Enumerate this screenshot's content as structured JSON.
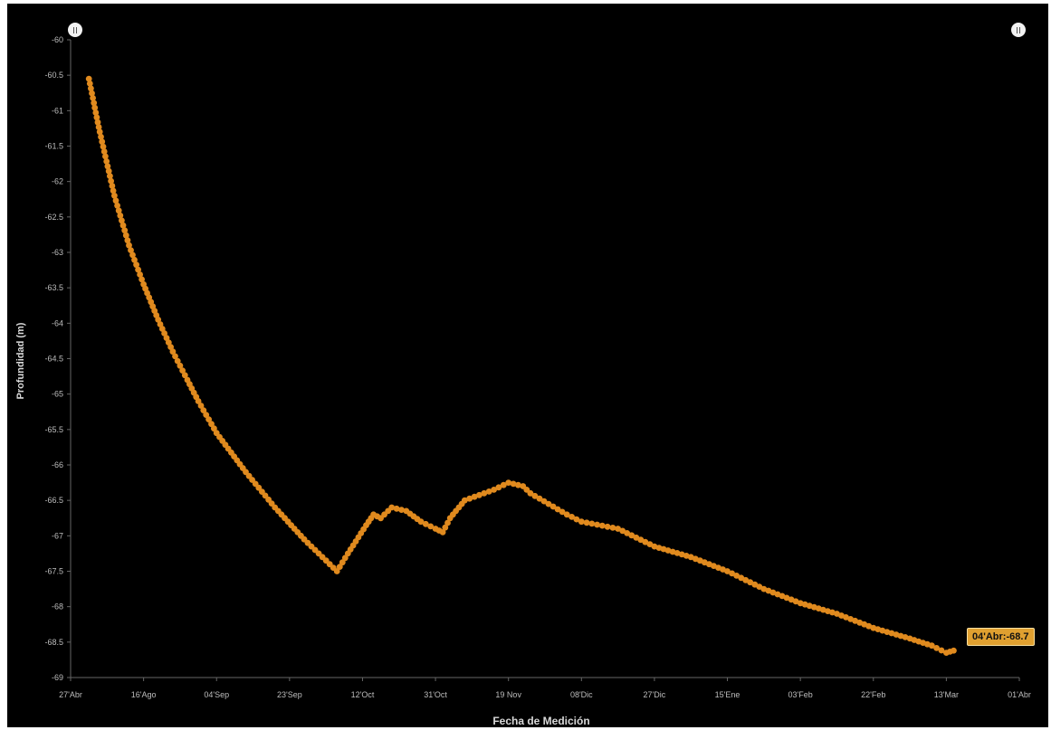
{
  "chart_data": {
    "type": "scatter",
    "xlabel": "Fecha de Medición",
    "ylabel": "Profundidad (m)",
    "ylim": [
      -69,
      -60
    ],
    "yticks": [
      "-60",
      "-60.5",
      "-61",
      "-61.5",
      "-62",
      "-62.5",
      "-63",
      "-63.5",
      "-64",
      "-64.5",
      "-65",
      "-65.5",
      "-66",
      "-66.5",
      "-67",
      "-67.5",
      "-68",
      "-68.5",
      "-69"
    ],
    "xticks": [
      "27'Abr",
      "16'Ago",
      "04'Sep",
      "23'Sep",
      "12'Oct",
      "31'Oct",
      "19 Nov",
      "08'Dic",
      "27'Dic",
      "15'Ene",
      "03'Feb",
      "22'Feb",
      "13'Mar",
      "01'Abr"
    ],
    "grid": false,
    "series_color": "#e08a1e",
    "anchors": [
      [
        0.25,
        -60.55
      ],
      [
        0.4,
        -61.3
      ],
      [
        0.6,
        -62.2
      ],
      [
        0.8,
        -62.9
      ],
      [
        1.0,
        -63.45
      ],
      [
        1.2,
        -63.95
      ],
      [
        1.4,
        -64.4
      ],
      [
        1.6,
        -64.8
      ],
      [
        1.75,
        -65.1
      ],
      [
        2.0,
        -65.55
      ],
      [
        2.4,
        -66.1
      ],
      [
        2.8,
        -66.6
      ],
      [
        3.2,
        -67.05
      ],
      [
        3.5,
        -67.35
      ],
      [
        3.65,
        -67.5
      ],
      [
        3.8,
        -67.25
      ],
      [
        4.05,
        -66.85
      ],
      [
        4.15,
        -66.7
      ],
      [
        4.25,
        -66.75
      ],
      [
        4.4,
        -66.6
      ],
      [
        4.6,
        -66.65
      ],
      [
        4.8,
        -66.8
      ],
      [
        5.0,
        -66.9
      ],
      [
        5.1,
        -66.95
      ],
      [
        5.2,
        -66.75
      ],
      [
        5.4,
        -66.5
      ],
      [
        5.8,
        -66.35
      ],
      [
        6.0,
        -66.25
      ],
      [
        6.2,
        -66.3
      ],
      [
        6.3,
        -66.4
      ],
      [
        6.8,
        -66.7
      ],
      [
        7.0,
        -66.8
      ],
      [
        7.5,
        -66.9
      ],
      [
        8.0,
        -67.15
      ],
      [
        8.5,
        -67.3
      ],
      [
        9.0,
        -67.5
      ],
      [
        9.5,
        -67.75
      ],
      [
        10.0,
        -67.95
      ],
      [
        10.5,
        -68.1
      ],
      [
        11.0,
        -68.3
      ],
      [
        11.5,
        -68.45
      ],
      [
        11.8,
        -68.55
      ],
      [
        12.0,
        -68.65
      ],
      [
        12.1,
        -68.62
      ]
    ],
    "tooltip": "04'Abr:-68.7"
  }
}
